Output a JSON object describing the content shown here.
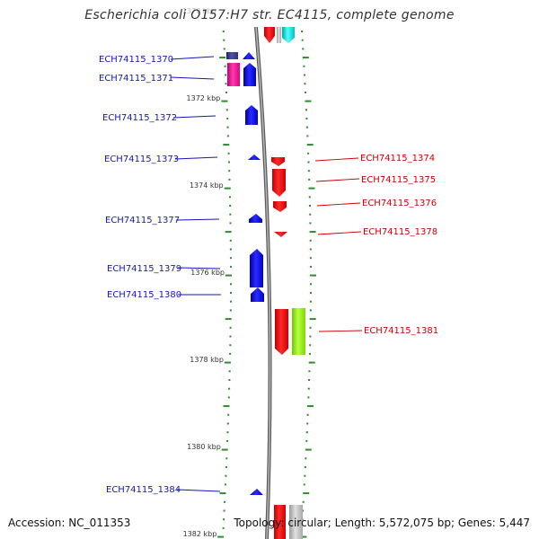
{
  "header": {
    "title": "Escherichia coli O157:H7 str. EC4115, complete genome"
  },
  "footer": {
    "accession": "Accession: NC_011353",
    "summary": "Topology: circular; Length: 5,572,075 bp; Genes: 5,447"
  },
  "scale": {
    "ticks": [
      {
        "label": "1370 kbp"
      },
      {
        "label": "1372 kbp"
      },
      {
        "label": "1374 kbp"
      },
      {
        "label": "1376 kbp"
      },
      {
        "label": "1378 kbp"
      },
      {
        "label": "1380 kbp"
      },
      {
        "label": "1382 kbp"
      }
    ]
  },
  "genes_left": [
    {
      "label": "ECH74115_1370",
      "color": "#0000ff"
    },
    {
      "label": "ECH74115_1371",
      "color": "#0000ff"
    },
    {
      "label": "ECH74115_1372",
      "color": "#0000ff"
    },
    {
      "label": "ECH74115_1373",
      "color": "#0000ff"
    },
    {
      "label": "ECH74115_1377",
      "color": "#0000ff"
    },
    {
      "label": "ECH74115_1379",
      "color": "#0000ff"
    },
    {
      "label": "ECH74115_1380",
      "color": "#0000ff"
    },
    {
      "label": "ECH74115_1384",
      "color": "#0000ff"
    }
  ],
  "genes_right": [
    {
      "label": "ECH74115_1374",
      "color": "#ff0000"
    },
    {
      "label": "ECH74115_1375",
      "color": "#ff0000"
    },
    {
      "label": "ECH74115_1376",
      "color": "#ff0000"
    },
    {
      "label": "ECH74115_1378",
      "color": "#ff0000"
    },
    {
      "label": "ECH74115_1381",
      "color": "#ff0000"
    }
  ]
}
